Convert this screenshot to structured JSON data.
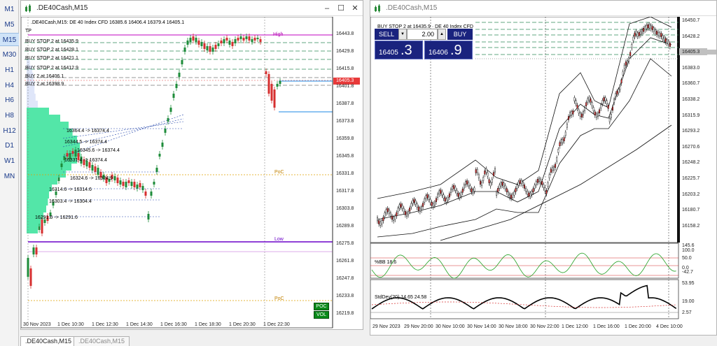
{
  "timeframes": [
    "M1",
    "M5",
    "M15",
    "M30",
    "H1",
    "H4",
    "H6",
    "H8",
    "H12",
    "D1",
    "W1",
    "MN"
  ],
  "active_tf": "M15",
  "left": {
    "title": ".DE40Cash,M15",
    "header": ".DE40Cash,M15: DE 40 Index CFD  16385.6 16406.4 16379.4 16405.1",
    "tp": "TP",
    "orders": [
      "BUY STOP 2 at 16435.9",
      "BUY STOP 2 at 16428.1",
      "BUY STOP 2 at 16421.1",
      "BUY STOP 2 at 16412.9",
      "BUY 2 at 16406.1",
      "BUY 2 at 16398.9"
    ],
    "price_ticks": [
      "16443.8",
      "16429.8",
      "16415.8",
      "16401.8",
      "16387.8",
      "16373.8",
      "16359.8",
      "16345.8",
      "16331.8",
      "16317.8",
      "16303.8",
      "16289.8",
      "16275.8",
      "16261.8",
      "16247.8",
      "16233.8",
      "16219.8"
    ],
    "current_price": "16405.3",
    "time_ticks": [
      "30 Nov 2023",
      "1 Dec 10:30",
      "1 Dec 12:30",
      "1 Dec 14:30",
      "1 Dec 16:30",
      "1 Dec 18:30",
      "1 Dec 20:30",
      "1 Dec 22:30"
    ],
    "annot": [
      "16364.4 -> 16374.4",
      "16344.5 -> 16374.4",
      "16345.6 -> 16374.4",
      "16331.4 -> 16374.4",
      "16324.6 -> 16324.9",
      "16314.6 -> 16314.6",
      "16303.4 -> 16304.4",
      "16291.6 -> 16291.6"
    ],
    "levels": {
      "high": "High",
      "poc": "PoC",
      "low": "Low",
      "poc2": "PoC"
    },
    "btn_poc": "POC",
    "btn_vol": "VOL"
  },
  "right": {
    "title": ".DE40Cash,M15",
    "header": "BUY STOP 2 at 16435.9 · DE 40 Index CFD",
    "sell_label": "SELL",
    "buy_label": "BUY",
    "lot": "2.00",
    "sell_big": "16405",
    "sell_small": ".3",
    "buy_big": "16406",
    "buy_small": ".9",
    "price_ticks": [
      "16450.7",
      "16428.2",
      "16405.3",
      "16383.0",
      "16360.7",
      "16338.2",
      "16315.9",
      "16293.2",
      "16270.6",
      "16248.2",
      "16225.7",
      "16203.2",
      "16180.7",
      "16158.2"
    ],
    "current_price": "16405.3",
    "bb_label": "%BB 18.6",
    "bb_ticks": [
      "145.6",
      "100.0",
      "50.0",
      "0.0",
      "-42.7"
    ],
    "std_label": "StdDev(20) 14.65 24.58",
    "std_ticks": [
      "53.95",
      "19.00",
      "2.57"
    ],
    "time_ticks": [
      "29 Nov 2023",
      "29 Nov 20:00",
      "30 Nov 10:00",
      "30 Nov 14:00",
      "30 Nov 18:00",
      "30 Nov 22:00",
      "1 Dec 12:00",
      "1 Dec 16:00",
      "1 Dec 20:00",
      "4 Dec 10:00"
    ]
  },
  "tabs": [
    ".DE40Cash,M15",
    ".DE40Cash,M15"
  ],
  "colors": {
    "bull": "#1e8c3a",
    "bear": "#d62f2f",
    "volume": "#53e6a8",
    "order_line": "#2e8b57",
    "trade_panel": "#1a237e"
  }
}
